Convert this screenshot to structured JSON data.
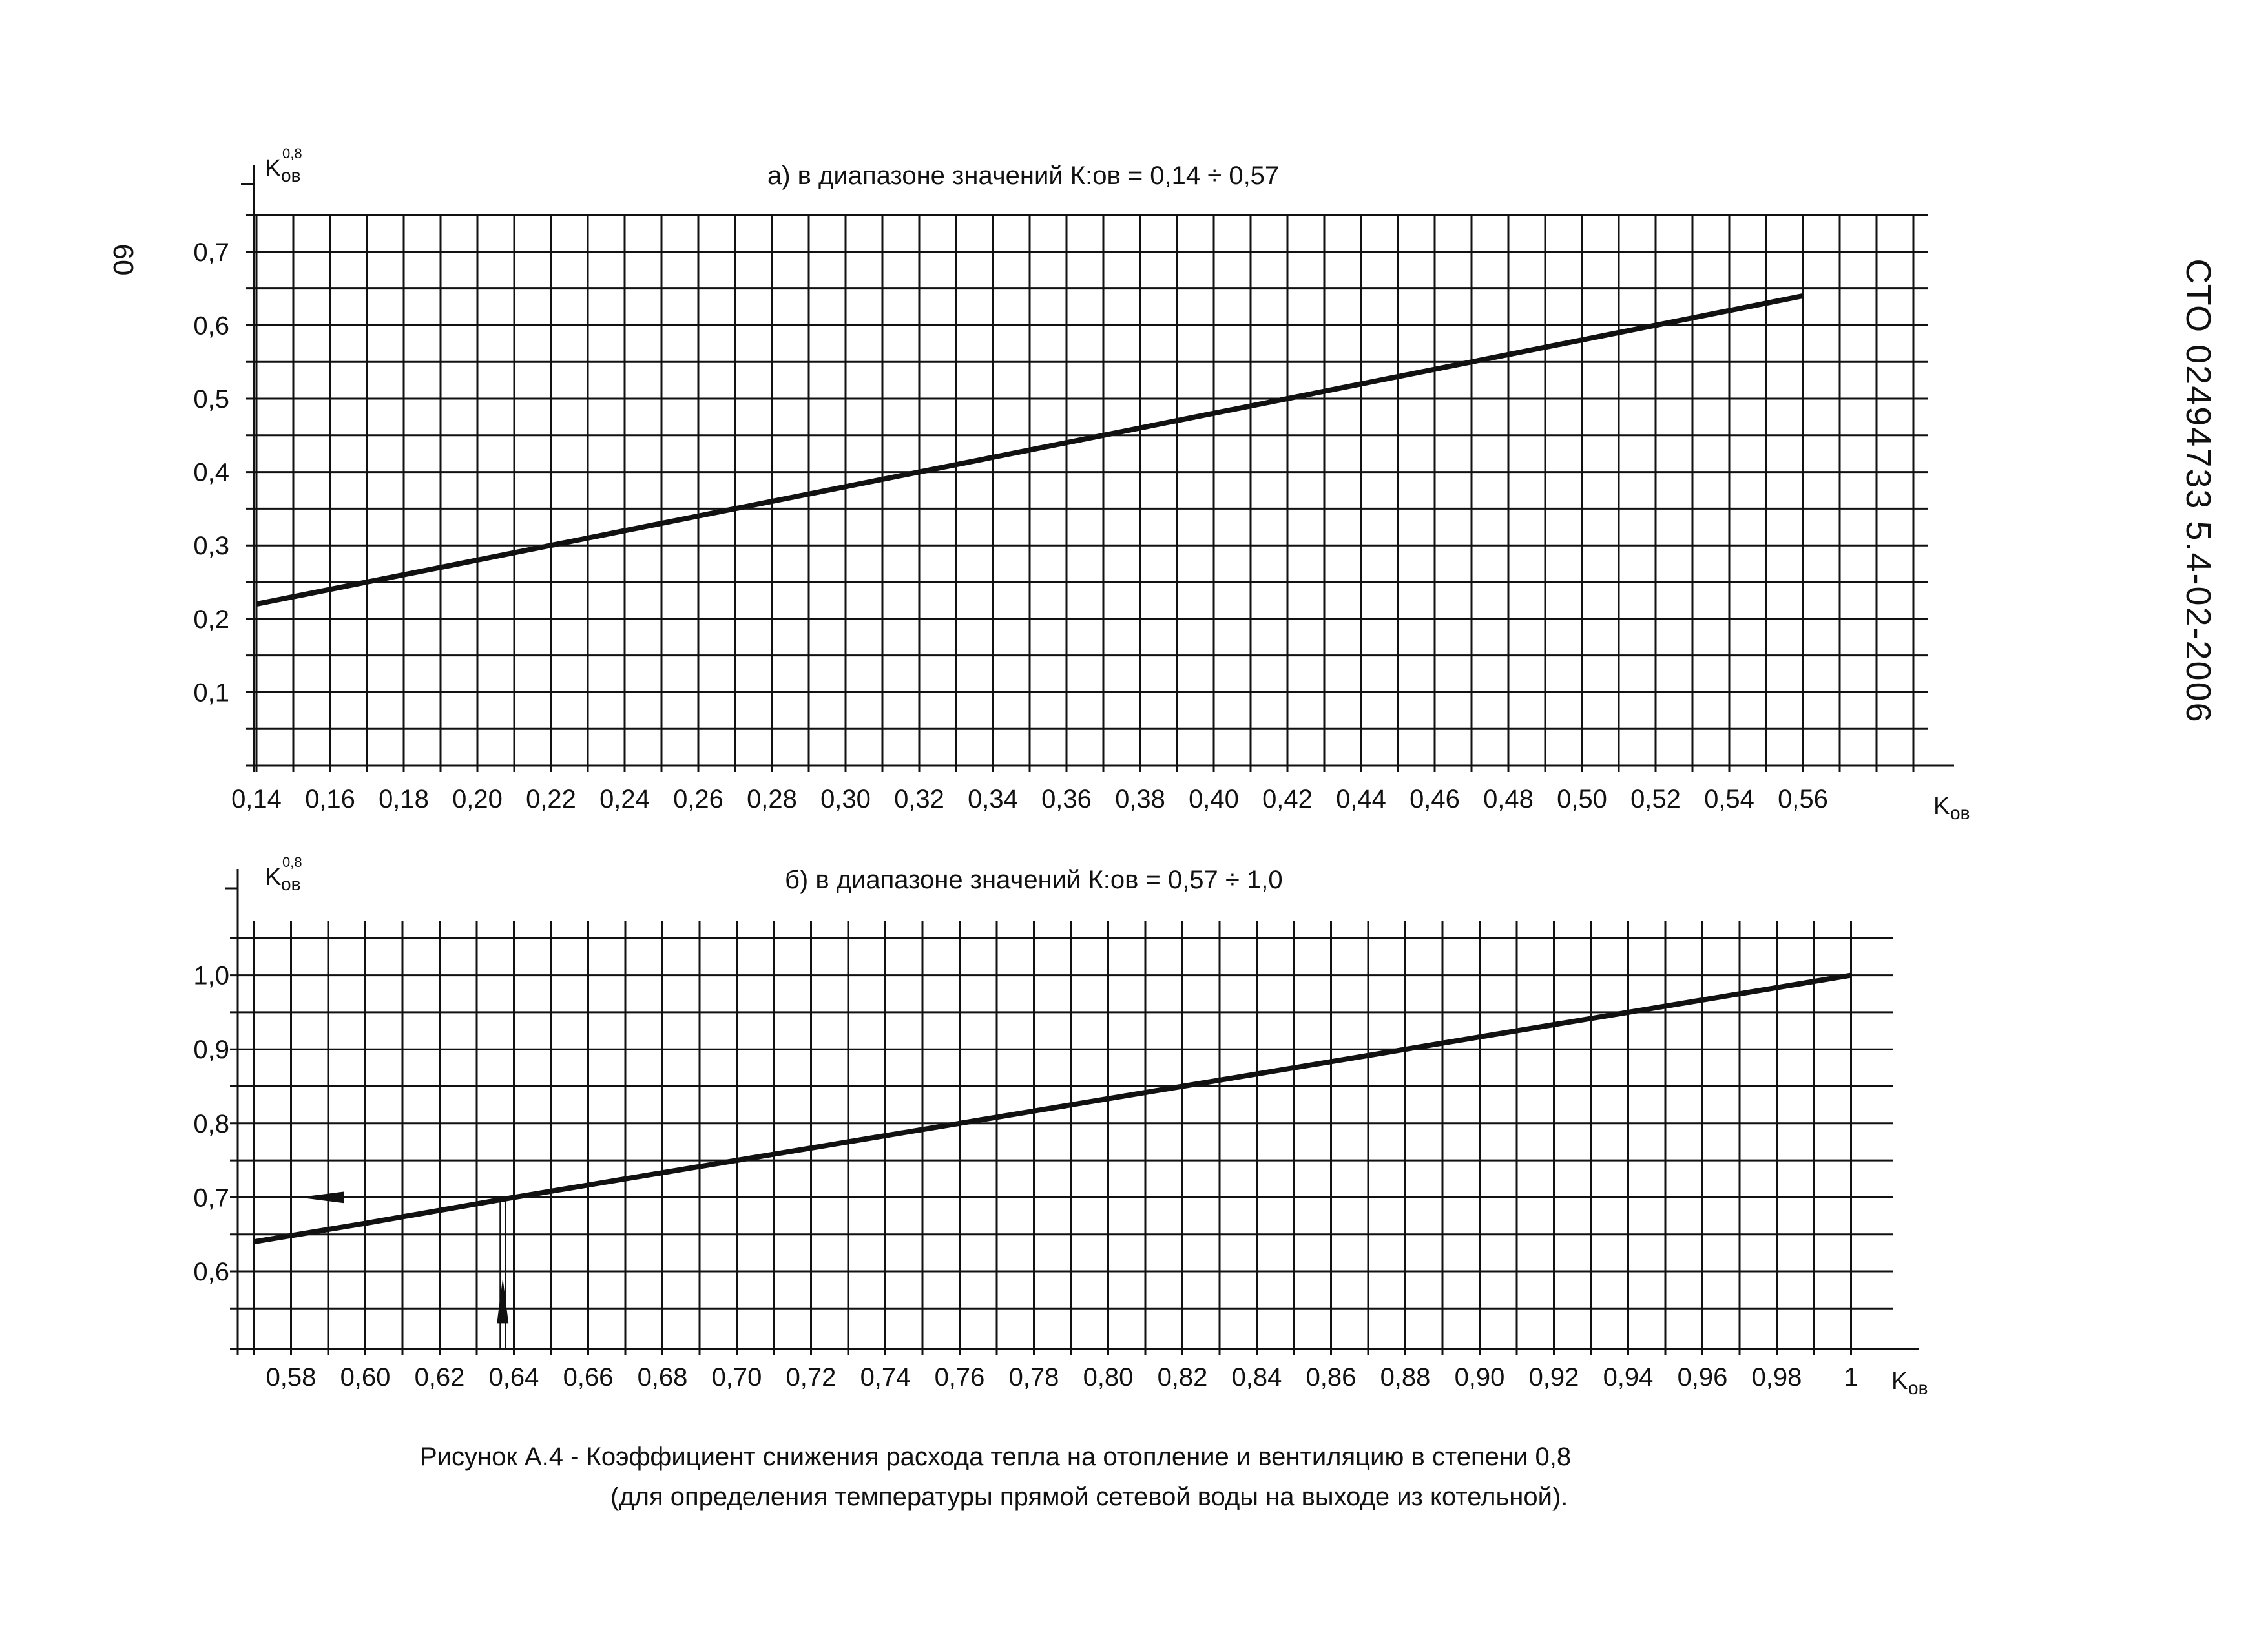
{
  "page_number": "60",
  "document_code": "СТО  02494733  5.4-02-2006",
  "caption": {
    "line1": "Рисунок А.4 - Коэффициент снижения расхода тепла на отопление и вентиляцию в степени 0,8",
    "line2": "(для определения температуры прямой сетевой воды на выходе из котельной)."
  },
  "colors": {
    "ink": "#111111",
    "paper": "#ffffff"
  },
  "chart_data": [
    {
      "type": "line",
      "title": "а) в диапазоне значений К:ов = 0,14 ÷ 0,57",
      "ylabel": {
        "base": "K",
        "sub": "ов",
        "sup": "0,8"
      },
      "xlabel": {
        "base": "K",
        "sub": "ов"
      },
      "xlim": [
        0.14,
        0.57
      ],
      "ylim": [
        0,
        0.75
      ],
      "x_ticks": [
        "0,14",
        "0,16",
        "0,18",
        "0,20",
        "0,22",
        "0,24",
        "0,26",
        "0,28",
        "0,30",
        "0,32",
        "0,34",
        "0,36",
        "0,38",
        "0,40",
        "0,42",
        "0,44",
        "0,46",
        "0,48",
        "0,50",
        "0,52",
        "0,54",
        "0,56"
      ],
      "y_ticks": [
        "0,1",
        "0,2",
        "0,3",
        "0,4",
        "0,5",
        "0,6",
        "0,7"
      ],
      "grid": true,
      "series": [
        {
          "x": [
            0.14,
            0.16,
            0.2,
            0.24,
            0.28,
            0.32,
            0.36,
            0.4,
            0.44,
            0.48,
            0.52,
            0.56
          ],
          "y": [
            0.22,
            0.24,
            0.28,
            0.32,
            0.36,
            0.4,
            0.44,
            0.48,
            0.52,
            0.56,
            0.6,
            0.64
          ]
        }
      ]
    },
    {
      "type": "line",
      "title": "б) в диапазоне значений К:ов = 0,57 ÷ 1,0",
      "ylabel": {
        "base": "K",
        "sub": "ов",
        "sup": "0,8"
      },
      "xlabel": {
        "base": "K",
        "sub": "ов"
      },
      "xlim": [
        0.57,
        1.0
      ],
      "ylim": [
        0.5,
        1.05
      ],
      "x_ticks": [
        "0,58",
        "0,60",
        "0,62",
        "0,64",
        "0,66",
        "0,68",
        "0,70",
        "0,72",
        "0,74",
        "0,76",
        "0,78",
        "0,80",
        "0,82",
        "0,84",
        "0,86",
        "0,88",
        "0,90",
        "0,92",
        "0,94",
        "0,96",
        "0,98",
        "1"
      ],
      "y_ticks": [
        "0,6",
        "0,7",
        "0,8",
        "0,9",
        "1,0"
      ],
      "grid": true,
      "series": [
        {
          "x": [
            0.57,
            0.6,
            0.64,
            0.7,
            0.76,
            0.82,
            0.88,
            0.94,
            1.0
          ],
          "y": [
            0.64,
            0.665,
            0.7,
            0.75,
            0.8,
            0.85,
            0.9,
            0.95,
            1.0
          ]
        }
      ],
      "example": {
        "x": 0.637,
        "y": 0.7
      }
    }
  ]
}
